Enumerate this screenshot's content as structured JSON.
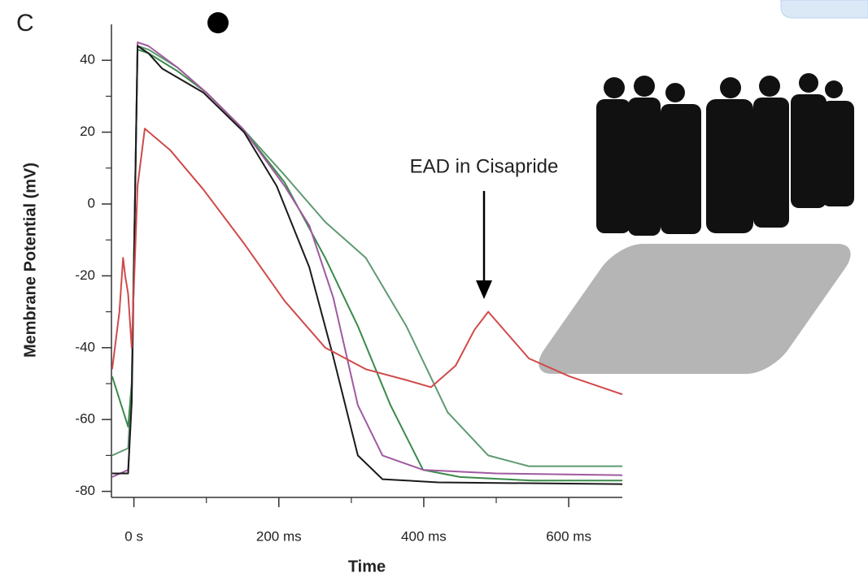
{
  "chart_data": {
    "type": "line",
    "panel_label": "C",
    "x_label": "Time",
    "y_label": "Membrane Potential (mV)",
    "annotation": "EAD in Cisapride",
    "xlim": [
      -31,
      674
    ],
    "ylim": [
      -81,
      50
    ],
    "xticks": [
      {
        "value": 0,
        "label": "0 s"
      },
      {
        "value": 200,
        "label": "200 ms"
      },
      {
        "value": 400,
        "label": "400 ms"
      },
      {
        "value": 600,
        "label": "600 ms"
      }
    ],
    "yticks": [
      -80,
      -60,
      -40,
      -20,
      0,
      20,
      40
    ],
    "series": [
      {
        "color": "#5f9a72",
        "x": [
          -30,
          -8,
          -3,
          5,
          20,
          60,
          100,
          150,
          208,
          264,
          320,
          376,
          433,
          489,
          545,
          600,
          674
        ],
        "values": [
          -70,
          -68,
          -50,
          44,
          43,
          38,
          31,
          21,
          8,
          -5,
          -15,
          -34,
          -58,
          -70,
          -73,
          -73,
          -73
        ]
      },
      {
        "color": "#3a8a4a",
        "x": [
          -30,
          -8,
          -3,
          5,
          20,
          60,
          100,
          150,
          208,
          264,
          309,
          354,
          399,
          450,
          550,
          674
        ],
        "values": [
          -48,
          -62,
          -50,
          43,
          42,
          37,
          31,
          21,
          6,
          -15,
          -34,
          -56,
          -74,
          -76,
          -77,
          -77
        ]
      },
      {
        "color": "#a05aa0",
        "x": [
          -30,
          -8,
          -3,
          5,
          20,
          60,
          100,
          150,
          208,
          242,
          275,
          309,
          343,
          399,
          500,
          674
        ],
        "values": [
          -76,
          -74,
          -55,
          45,
          44,
          38,
          31,
          21,
          5,
          -6,
          -26,
          -56,
          -70,
          -74,
          -75,
          -75.5
        ]
      },
      {
        "color": "#1a1a1a",
        "x": [
          -30,
          -8,
          -3,
          5,
          20,
          39,
          96,
          152,
          197,
          242,
          275,
          309,
          343,
          420,
          674
        ],
        "values": [
          -75,
          -75,
          -55,
          44,
          42,
          37.7,
          31,
          20,
          5,
          -17.6,
          -42.5,
          -70,
          -76.6,
          -77.5,
          -78
        ]
      },
      {
        "color": "#d04a4a",
        "x": [
          -30,
          -20,
          -15,
          -12,
          -8,
          -3,
          5,
          15,
          50,
          96,
          152,
          208,
          264,
          320,
          376,
          410,
          444,
          470,
          489,
          545,
          601,
          674
        ],
        "values": [
          -46,
          -30,
          -15,
          -20,
          -25,
          -40,
          5,
          21,
          15,
          4,
          -11,
          -27,
          -40,
          -46,
          -49,
          -51,
          -45,
          -35,
          -30,
          -43,
          -48,
          -53
        ]
      }
    ]
  }
}
